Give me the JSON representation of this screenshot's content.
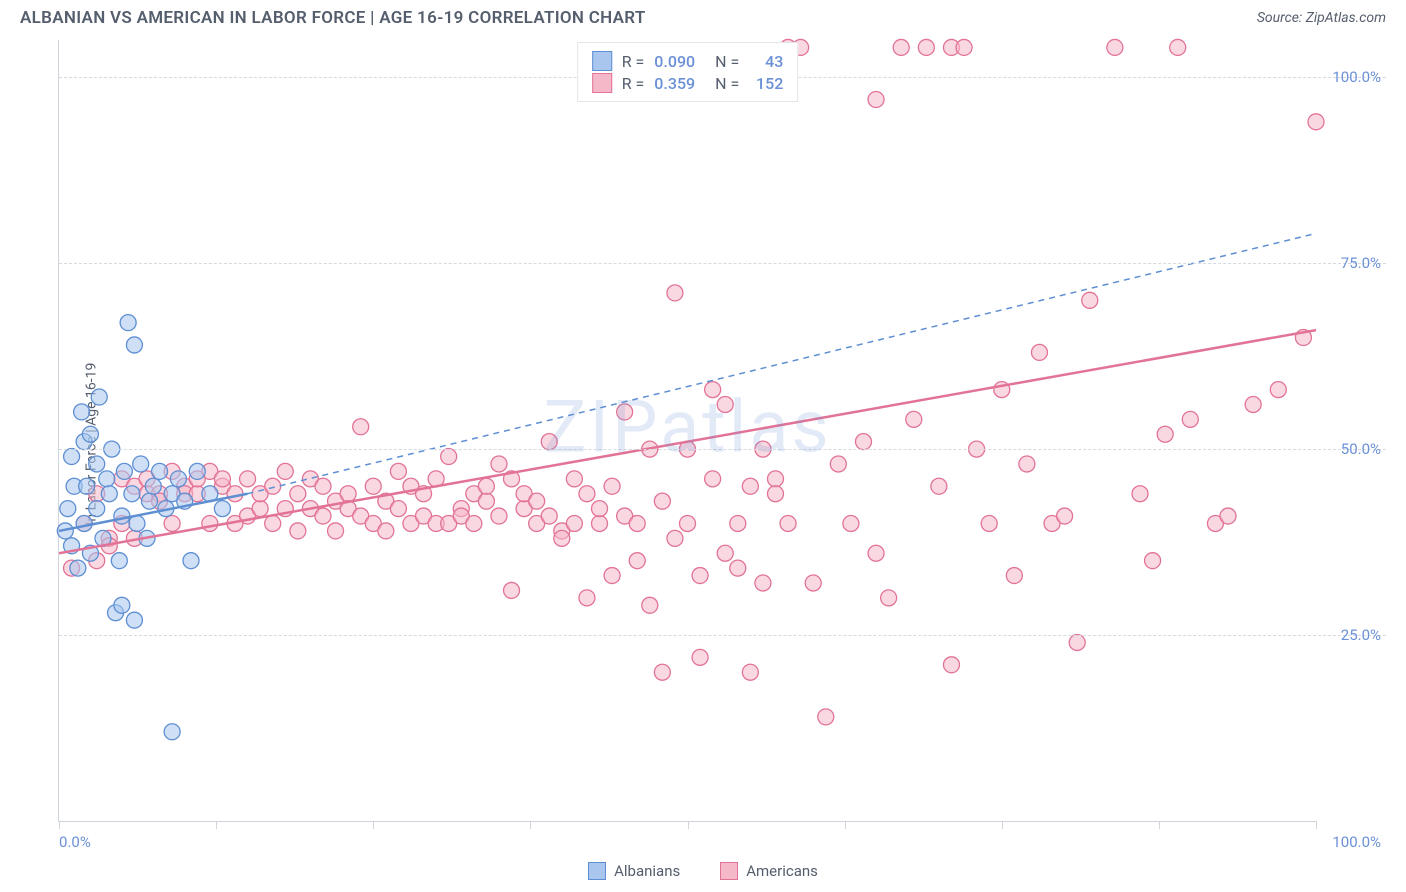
{
  "title": "ALBANIAN VS AMERICAN IN LABOR FORCE | AGE 16-19 CORRELATION CHART",
  "source": "Source: ZipAtlas.com",
  "watermark": "ZIPatlas",
  "y_axis_label": "In Labor Force | Age 16-19",
  "chart": {
    "type": "scatter",
    "xlim": [
      0,
      100
    ],
    "ylim": [
      0,
      105
    ],
    "y_ticks": [
      25,
      50,
      75,
      100
    ],
    "y_tick_labels": [
      "25.0%",
      "50.0%",
      "75.0%",
      "100.0%"
    ],
    "x_ticks": [
      0,
      12.5,
      25,
      37.5,
      50,
      62.5,
      75,
      87.5,
      100
    ],
    "x_tick_labels_shown": {
      "0": "0.0%",
      "100": "100.0%"
    },
    "background_color": "#ffffff",
    "grid_color": "#d5d9e0",
    "axis_color": "#cfd4dc",
    "label_color": "#6b90d6",
    "point_radius": 8,
    "point_opacity": 0.55,
    "series": [
      {
        "name": "Albanians",
        "color_fill": "#a8c6ee",
        "color_stroke": "#5e8fd3",
        "R": "0.090",
        "N": "43",
        "trend": {
          "x1": 0,
          "y1": 39,
          "x2": 15,
          "y2": 44,
          "style": "solid",
          "width": 2.5
        },
        "projection": {
          "x1": 15,
          "y1": 44,
          "x2": 100,
          "y2": 79,
          "style": "dashed",
          "width": 1.5
        },
        "points": [
          [
            0.5,
            39
          ],
          [
            0.7,
            42
          ],
          [
            1,
            37
          ],
          [
            1,
            49
          ],
          [
            1.2,
            45
          ],
          [
            1.5,
            34
          ],
          [
            1.8,
            55
          ],
          [
            2,
            40
          ],
          [
            2,
            51
          ],
          [
            2.2,
            45
          ],
          [
            2.5,
            36
          ],
          [
            2.5,
            52
          ],
          [
            3,
            48
          ],
          [
            3,
            42
          ],
          [
            3.2,
            57
          ],
          [
            3.5,
            38
          ],
          [
            3.8,
            46
          ],
          [
            4,
            44
          ],
          [
            4.2,
            50
          ],
          [
            4.5,
            28
          ],
          [
            4.8,
            35
          ],
          [
            5,
            41
          ],
          [
            5,
            29
          ],
          [
            5.2,
            47
          ],
          [
            5.5,
            67
          ],
          [
            5.8,
            44
          ],
          [
            6,
            27
          ],
          [
            6,
            64
          ],
          [
            6.2,
            40
          ],
          [
            6.5,
            48
          ],
          [
            7,
            38
          ],
          [
            7.2,
            43
          ],
          [
            7.5,
            45
          ],
          [
            8,
            47
          ],
          [
            8.5,
            42
          ],
          [
            9,
            44
          ],
          [
            9,
            12
          ],
          [
            9.5,
            46
          ],
          [
            10,
            43
          ],
          [
            10.5,
            35
          ],
          [
            11,
            47
          ],
          [
            12,
            44
          ],
          [
            13,
            42
          ]
        ]
      },
      {
        "name": "Americans",
        "color_fill": "#f5b8c8",
        "color_stroke": "#e27396",
        "R": "0.359",
        "N": "152",
        "trend": {
          "x1": 0,
          "y1": 36,
          "x2": 100,
          "y2": 66,
          "style": "solid",
          "width": 2.5
        },
        "points": [
          [
            1,
            34
          ],
          [
            2,
            40
          ],
          [
            3,
            35
          ],
          [
            3,
            44
          ],
          [
            4,
            38
          ],
          [
            4,
            37
          ],
          [
            5,
            46
          ],
          [
            5,
            40
          ],
          [
            6,
            45
          ],
          [
            6,
            38
          ],
          [
            7,
            44
          ],
          [
            7,
            46
          ],
          [
            8,
            44
          ],
          [
            8,
            43
          ],
          [
            9,
            47
          ],
          [
            9,
            40
          ],
          [
            10,
            45
          ],
          [
            10,
            44
          ],
          [
            11,
            44
          ],
          [
            11,
            46
          ],
          [
            12,
            47
          ],
          [
            12,
            40
          ],
          [
            13,
            45
          ],
          [
            13,
            46
          ],
          [
            14,
            44
          ],
          [
            14,
            40
          ],
          [
            15,
            41
          ],
          [
            15,
            46
          ],
          [
            16,
            42
          ],
          [
            16,
            44
          ],
          [
            17,
            45
          ],
          [
            17,
            40
          ],
          [
            18,
            47
          ],
          [
            18,
            42
          ],
          [
            19,
            44
          ],
          [
            19,
            39
          ],
          [
            20,
            46
          ],
          [
            20,
            42
          ],
          [
            21,
            45
          ],
          [
            21,
            41
          ],
          [
            22,
            39
          ],
          [
            22,
            43
          ],
          [
            23,
            44
          ],
          [
            23,
            42
          ],
          [
            24,
            41
          ],
          [
            24,
            53
          ],
          [
            25,
            45
          ],
          [
            25,
            40
          ],
          [
            26,
            39
          ],
          [
            26,
            43
          ],
          [
            27,
            47
          ],
          [
            27,
            42
          ],
          [
            28,
            45
          ],
          [
            28,
            40
          ],
          [
            29,
            44
          ],
          [
            29,
            41
          ],
          [
            30,
            40
          ],
          [
            30,
            46
          ],
          [
            31,
            40
          ],
          [
            31,
            49
          ],
          [
            32,
            42
          ],
          [
            32,
            41
          ],
          [
            33,
            44
          ],
          [
            33,
            40
          ],
          [
            34,
            43
          ],
          [
            34,
            45
          ],
          [
            35,
            48
          ],
          [
            35,
            41
          ],
          [
            36,
            46
          ],
          [
            36,
            31
          ],
          [
            37,
            42
          ],
          [
            37,
            44
          ],
          [
            38,
            40
          ],
          [
            38,
            43
          ],
          [
            39,
            51
          ],
          [
            39,
            41
          ],
          [
            40,
            39
          ],
          [
            40,
            38
          ],
          [
            41,
            46
          ],
          [
            41,
            40
          ],
          [
            42,
            30
          ],
          [
            42,
            44
          ],
          [
            43,
            40
          ],
          [
            43,
            42
          ],
          [
            44,
            45
          ],
          [
            44,
            33
          ],
          [
            45,
            55
          ],
          [
            45,
            41
          ],
          [
            46,
            40
          ],
          [
            46,
            35
          ],
          [
            47,
            50
          ],
          [
            47,
            29
          ],
          [
            48,
            20
          ],
          [
            48,
            43
          ],
          [
            49,
            71
          ],
          [
            49,
            38
          ],
          [
            50,
            40
          ],
          [
            50,
            50
          ],
          [
            51,
            33
          ],
          [
            51,
            22
          ],
          [
            52,
            46
          ],
          [
            52,
            58
          ],
          [
            53,
            36
          ],
          [
            53,
            56
          ],
          [
            54,
            40
          ],
          [
            54,
            34
          ],
          [
            55,
            45
          ],
          [
            55,
            20
          ],
          [
            56,
            50
          ],
          [
            56,
            32
          ],
          [
            57,
            46
          ],
          [
            57,
            44
          ],
          [
            58,
            40
          ],
          [
            58,
            104
          ],
          [
            59,
            104
          ],
          [
            60,
            32
          ],
          [
            61,
            14
          ],
          [
            62,
            48
          ],
          [
            63,
            40
          ],
          [
            64,
            51
          ],
          [
            65,
            36
          ],
          [
            65,
            97
          ],
          [
            66,
            30
          ],
          [
            67,
            104
          ],
          [
            68,
            54
          ],
          [
            69,
            104
          ],
          [
            70,
            45
          ],
          [
            71,
            21
          ],
          [
            71,
            104
          ],
          [
            72,
            104
          ],
          [
            73,
            50
          ],
          [
            74,
            40
          ],
          [
            75,
            58
          ],
          [
            76,
            33
          ],
          [
            77,
            48
          ],
          [
            78,
            63
          ],
          [
            79,
            40
          ],
          [
            80,
            41
          ],
          [
            81,
            24
          ],
          [
            82,
            70
          ],
          [
            84,
            104
          ],
          [
            86,
            44
          ],
          [
            87,
            35
          ],
          [
            88,
            52
          ],
          [
            89,
            104
          ],
          [
            90,
            54
          ],
          [
            92,
            40
          ],
          [
            93,
            41
          ],
          [
            95,
            56
          ],
          [
            97,
            58
          ],
          [
            99,
            65
          ],
          [
            100,
            94
          ]
        ]
      }
    ]
  },
  "legend_top": {
    "rows": [
      {
        "series": 0,
        "r_label": "R =",
        "n_label": "N ="
      },
      {
        "series": 1,
        "r_label": "R =",
        "n_label": "N ="
      }
    ]
  },
  "legend_bottom": [
    {
      "series": 0
    },
    {
      "series": 1
    }
  ]
}
